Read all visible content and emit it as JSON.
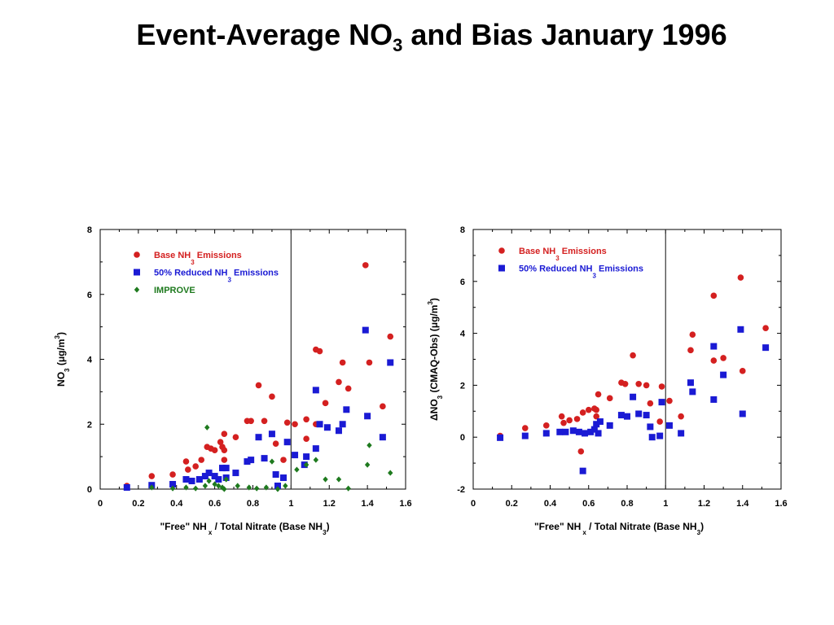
{
  "page": {
    "title_pre": "Event-Average NO",
    "title_sub": "3",
    "title_post": " and Bias January 1996"
  },
  "colors": {
    "base": "#d42020",
    "reduced": "#1a1ad4",
    "improve": "#1e7a1e"
  },
  "chart_data": [
    {
      "type": "scatter",
      "ylabel_pre": "NO",
      "ylabel_sub": "3",
      "ylabel_post": "  (μg/m",
      "ylabel_sup": "3",
      "ylabel_end": ")",
      "xlabel_pre": "\"Free\" NH",
      "xlabel_sub": "x",
      "xlabel_mid": " / Total Nitrate  (Base NH",
      "xlabel_sub2": "3",
      "xlabel_end": ")",
      "xlim": [
        0,
        1.6
      ],
      "ylim": [
        0,
        8
      ],
      "xticks": [
        "0",
        "0.2",
        "0.4",
        "0.6",
        "0.8",
        "1",
        "1.2",
        "1.4",
        "1.6"
      ],
      "yticks": [
        "0",
        "2",
        "4",
        "6",
        "8"
      ],
      "vline": 1,
      "series": [
        {
          "name_pre": "Base NH",
          "name_sub": "3",
          "name_post": " Emissions",
          "marker": "circle",
          "colorKey": "base",
          "points": [
            [
              0.14,
              0.1
            ],
            [
              0.27,
              0.4
            ],
            [
              0.38,
              0.45
            ],
            [
              0.45,
              0.85
            ],
            [
              0.46,
              0.6
            ],
            [
              0.5,
              0.7
            ],
            [
              0.53,
              0.9
            ],
            [
              0.56,
              1.3
            ],
            [
              0.58,
              1.25
            ],
            [
              0.6,
              1.2
            ],
            [
              0.63,
              1.45
            ],
            [
              0.64,
              1.3
            ],
            [
              0.65,
              1.2
            ],
            [
              0.65,
              1.7
            ],
            [
              0.65,
              0.9
            ],
            [
              0.71,
              1.6
            ],
            [
              0.77,
              2.1
            ],
            [
              0.79,
              2.1
            ],
            [
              0.83,
              3.2
            ],
            [
              0.86,
              2.1
            ],
            [
              0.9,
              2.85
            ],
            [
              0.92,
              1.4
            ],
            [
              0.96,
              0.9
            ],
            [
              0.98,
              2.05
            ],
            [
              1.02,
              2.0
            ],
            [
              1.08,
              1.55
            ],
            [
              1.08,
              2.15
            ],
            [
              1.13,
              2.0
            ],
            [
              1.13,
              4.3
            ],
            [
              1.15,
              4.25
            ],
            [
              1.18,
              2.65
            ],
            [
              1.25,
              3.3
            ],
            [
              1.27,
              3.9
            ],
            [
              1.3,
              3.1
            ],
            [
              1.39,
              6.9
            ],
            [
              1.41,
              3.9
            ],
            [
              1.48,
              2.55
            ],
            [
              1.52,
              4.7
            ]
          ]
        },
        {
          "name_pre": "50% Reduced NH",
          "name_sub": "3",
          "name_post": " Emissions",
          "marker": "square",
          "colorKey": "reduced",
          "points": [
            [
              0.14,
              0.05
            ],
            [
              0.27,
              0.12
            ],
            [
              0.38,
              0.15
            ],
            [
              0.45,
              0.3
            ],
            [
              0.48,
              0.25
            ],
            [
              0.52,
              0.3
            ],
            [
              0.55,
              0.4
            ],
            [
              0.57,
              0.5
            ],
            [
              0.6,
              0.4
            ],
            [
              0.62,
              0.3
            ],
            [
              0.64,
              0.65
            ],
            [
              0.66,
              0.65
            ],
            [
              0.66,
              0.35
            ],
            [
              0.71,
              0.5
            ],
            [
              0.77,
              0.85
            ],
            [
              0.79,
              0.9
            ],
            [
              0.83,
              1.6
            ],
            [
              0.86,
              0.95
            ],
            [
              0.9,
              1.7
            ],
            [
              0.92,
              0.45
            ],
            [
              0.93,
              0.1
            ],
            [
              0.96,
              0.35
            ],
            [
              0.98,
              1.45
            ],
            [
              1.02,
              1.05
            ],
            [
              1.07,
              0.75
            ],
            [
              1.08,
              1.0
            ],
            [
              1.13,
              1.25
            ],
            [
              1.13,
              3.05
            ],
            [
              1.15,
              2.0
            ],
            [
              1.19,
              1.9
            ],
            [
              1.25,
              1.8
            ],
            [
              1.27,
              2.0
            ],
            [
              1.29,
              2.45
            ],
            [
              1.39,
              4.9
            ],
            [
              1.4,
              2.25
            ],
            [
              1.48,
              1.6
            ],
            [
              1.52,
              3.9
            ]
          ]
        },
        {
          "name_pre": "IMPROVE",
          "name_sub": "",
          "name_post": "",
          "marker": "diamond",
          "colorKey": "improve",
          "points": [
            [
              0.27,
              0.05
            ],
            [
              0.38,
              0.02
            ],
            [
              0.45,
              0.05
            ],
            [
              0.5,
              0.02
            ],
            [
              0.55,
              0.1
            ],
            [
              0.56,
              1.9
            ],
            [
              0.57,
              0.25
            ],
            [
              0.6,
              0.15
            ],
            [
              0.62,
              0.1
            ],
            [
              0.64,
              0.05
            ],
            [
              0.65,
              0.0
            ],
            [
              0.66,
              0.3
            ],
            [
              0.72,
              0.1
            ],
            [
              0.78,
              0.05
            ],
            [
              0.82,
              0.02
            ],
            [
              0.87,
              0.05
            ],
            [
              0.9,
              0.85
            ],
            [
              0.93,
              0.0
            ],
            [
              0.97,
              0.1
            ],
            [
              1.03,
              0.6
            ],
            [
              1.08,
              0.75
            ],
            [
              1.13,
              0.9
            ],
            [
              1.18,
              0.3
            ],
            [
              1.25,
              0.3
            ],
            [
              1.3,
              0.02
            ],
            [
              1.4,
              0.75
            ],
            [
              1.41,
              1.35
            ],
            [
              1.52,
              0.5
            ]
          ]
        }
      ]
    },
    {
      "type": "scatter",
      "ylabel_pre": "ΔNO",
      "ylabel_sub": "3",
      "ylabel_post": " (CMAQ-Obs) (μg/m",
      "ylabel_sup": "3",
      "ylabel_end": ")",
      "xlabel_pre": "\"Free\" NH",
      "xlabel_sub": "x",
      "xlabel_mid": " / Total Nitrate  (Base NH",
      "xlabel_sub2": "3",
      "xlabel_end": ")",
      "xlim": [
        0,
        1.6
      ],
      "ylim": [
        -2,
        8
      ],
      "xticks": [
        "0",
        "0.2",
        "0.4",
        "0.6",
        "0.8",
        "1",
        "1.2",
        "1.4",
        "1.6"
      ],
      "yticks": [
        "-2",
        "0",
        "2",
        "4",
        "6",
        "8"
      ],
      "vline": 1,
      "series": [
        {
          "name_pre": "Base NH",
          "name_sub": "3",
          "name_post": " Emissions",
          "marker": "circle",
          "colorKey": "base",
          "points": [
            [
              0.14,
              0.05
            ],
            [
              0.27,
              0.35
            ],
            [
              0.38,
              0.45
            ],
            [
              0.46,
              0.8
            ],
            [
              0.47,
              0.55
            ],
            [
              0.5,
              0.65
            ],
            [
              0.54,
              0.7
            ],
            [
              0.56,
              -0.55
            ],
            [
              0.57,
              0.95
            ],
            [
              0.6,
              1.05
            ],
            [
              0.63,
              1.1
            ],
            [
              0.64,
              1.05
            ],
            [
              0.64,
              0.8
            ],
            [
              0.65,
              1.65
            ],
            [
              0.71,
              1.5
            ],
            [
              0.77,
              2.1
            ],
            [
              0.79,
              2.05
            ],
            [
              0.83,
              3.15
            ],
            [
              0.86,
              2.05
            ],
            [
              0.9,
              2.0
            ],
            [
              0.92,
              1.3
            ],
            [
              0.97,
              0.6
            ],
            [
              0.98,
              1.95
            ],
            [
              1.02,
              1.4
            ],
            [
              1.08,
              0.8
            ],
            [
              1.13,
              3.35
            ],
            [
              1.14,
              3.95
            ],
            [
              1.25,
              5.45
            ],
            [
              1.25,
              2.95
            ],
            [
              1.3,
              3.05
            ],
            [
              1.39,
              6.15
            ],
            [
              1.4,
              2.55
            ],
            [
              1.52,
              4.2
            ]
          ]
        },
        {
          "name_pre": "50% Reduced NH",
          "name_sub": "3",
          "name_post": " Emissions",
          "marker": "square",
          "colorKey": "reduced",
          "points": [
            [
              0.14,
              -0.02
            ],
            [
              0.27,
              0.05
            ],
            [
              0.38,
              0.15
            ],
            [
              0.45,
              0.2
            ],
            [
              0.48,
              0.2
            ],
            [
              0.52,
              0.25
            ],
            [
              0.55,
              0.2
            ],
            [
              0.57,
              -1.3
            ],
            [
              0.58,
              0.15
            ],
            [
              0.61,
              0.2
            ],
            [
              0.63,
              0.3
            ],
            [
              0.64,
              0.5
            ],
            [
              0.65,
              0.15
            ],
            [
              0.66,
              0.6
            ],
            [
              0.71,
              0.45
            ],
            [
              0.77,
              0.85
            ],
            [
              0.8,
              0.8
            ],
            [
              0.83,
              1.55
            ],
            [
              0.86,
              0.9
            ],
            [
              0.9,
              0.85
            ],
            [
              0.92,
              0.4
            ],
            [
              0.93,
              0.0
            ],
            [
              0.97,
              0.05
            ],
            [
              0.98,
              1.35
            ],
            [
              1.02,
              0.45
            ],
            [
              1.08,
              0.15
            ],
            [
              1.13,
              2.1
            ],
            [
              1.14,
              1.75
            ],
            [
              1.25,
              3.5
            ],
            [
              1.25,
              1.45
            ],
            [
              1.3,
              2.4
            ],
            [
              1.39,
              4.15
            ],
            [
              1.4,
              0.9
            ],
            [
              1.52,
              3.45
            ]
          ]
        }
      ]
    }
  ]
}
